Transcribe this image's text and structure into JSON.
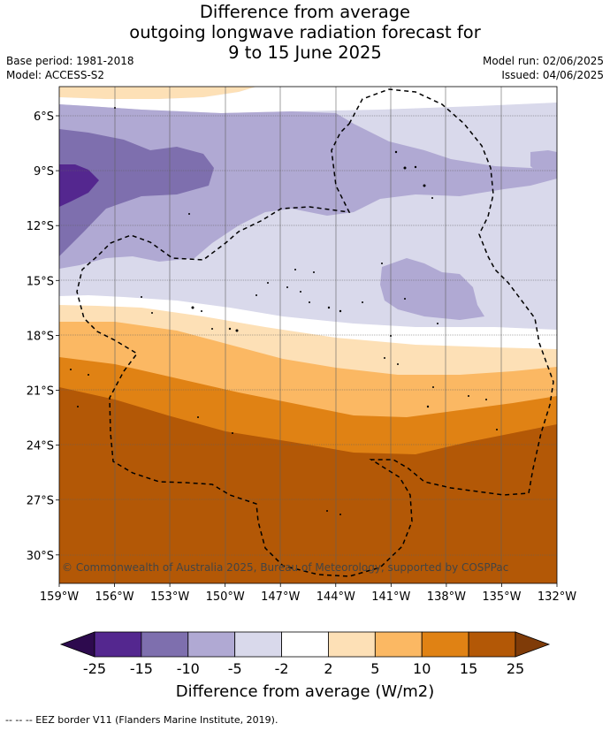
{
  "title": {
    "line1": "Difference from average",
    "line2": "outgoing longwave radiation forecast for",
    "line3": "9 to 15 June 2025"
  },
  "info": {
    "base_period": "Base period: 1981-2018",
    "model": "Model: ACCESS-S2",
    "model_run": "Model run: 02/06/2025",
    "issued": "Issued: 04/06/2025"
  },
  "copyright": "© Commonwealth of Australia 2025, Bureau of Meteorology, supported by COSPPac",
  "axes": {
    "lon_ticks": [
      "159°W",
      "156°W",
      "153°W",
      "150°W",
      "147°W",
      "144°W",
      "141°W",
      "138°W",
      "135°W",
      "132°W"
    ],
    "lat_ticks": [
      "6°S",
      "9°S",
      "12°S",
      "15°S",
      "18°S",
      "21°S",
      "24°S",
      "27°S",
      "30°S"
    ]
  },
  "colorbar": {
    "title": "Difference from average (W/m2)",
    "labels": [
      "-25",
      "-15",
      "-10",
      "-5",
      "-2",
      "2",
      "5",
      "10",
      "15",
      "25"
    ],
    "colors": {
      "under": "#2d0a4e",
      "bins": [
        "#54278f",
        "#7e6fae",
        "#b0a9d3",
        "#d9d9eb",
        "#ffffff",
        "#fde0b6",
        "#fbb863",
        "#e08214",
        "#b35806"
      ],
      "over": "#7f3b08"
    }
  },
  "eez_legend": "--  --  -- EEZ border V11 (Flanders Marine Institute, 2019)."
}
